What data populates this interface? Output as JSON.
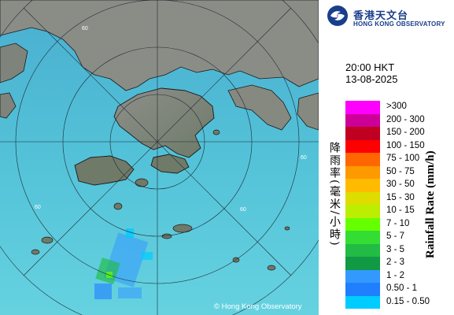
{
  "logo": {
    "icon": "hko-logo-icon",
    "name_cn": "香港天文台",
    "name_en": "HONG KONG OBSERVATORY"
  },
  "timestamp": {
    "time": "20:00 HKT",
    "date": "13-08-2025"
  },
  "legend": {
    "title_cn": "降雨率(毫米/小時)",
    "title_en": "Rainfall Rate (mm/h)",
    "items": [
      {
        "label": ">300",
        "color": "#ff00ff"
      },
      {
        "label": "200 - 300",
        "color": "#cc0099"
      },
      {
        "label": "150 - 200",
        "color": "#c00020"
      },
      {
        "label": "100 - 150",
        "color": "#ff0000"
      },
      {
        "label": "75 - 100",
        "color": "#ff6600"
      },
      {
        "label": "50 - 75",
        "color": "#ff9900"
      },
      {
        "label": "30 - 50",
        "color": "#ffbb00"
      },
      {
        "label": "15 - 30",
        "color": "#dddd00"
      },
      {
        "label": "10 - 15",
        "color": "#bbee00"
      },
      {
        "label": "7 - 10",
        "color": "#66ff00"
      },
      {
        "label": "5 - 7",
        "color": "#33dd33"
      },
      {
        "label": "3 - 5",
        "color": "#22bb44"
      },
      {
        "label": "2 - 3",
        "color": "#119944"
      },
      {
        "label": "1 - 2",
        "color": "#3399ff"
      },
      {
        "label": "0.50 - 1",
        "color": "#1f7fff"
      },
      {
        "label": "0.15 - 0.50",
        "color": "#00ccff"
      }
    ]
  },
  "map": {
    "ring_labels": [
      "60",
      "60",
      "60",
      "60"
    ],
    "copyright": "© Hong Kong Observatory"
  }
}
